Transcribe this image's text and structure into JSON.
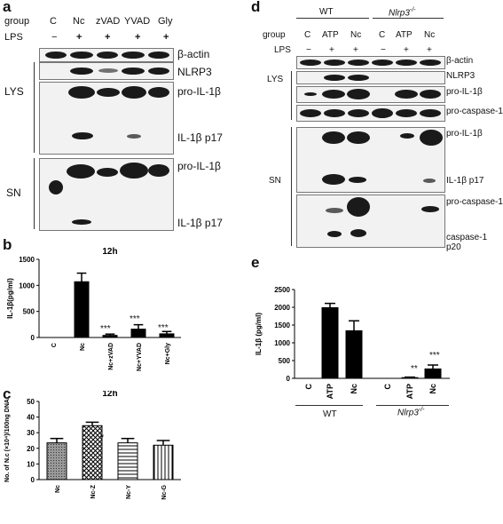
{
  "panel_a": {
    "letter": "a",
    "group_label": "group",
    "lps_label": "LPS",
    "groups": [
      "C",
      "Nc",
      "zVAD",
      "YVAD",
      "Gly"
    ],
    "lps": [
      "−",
      "+",
      "+",
      "+",
      "+"
    ],
    "lys_label": "LYS",
    "sn_label": "SN",
    "bands": [
      "β-actin",
      "NLRP3",
      "pro-IL-1β",
      "IL-1β p17",
      "pro-IL-1β",
      "IL-1β p17"
    ]
  },
  "panel_b": {
    "letter": "b",
    "sig": [
      "***",
      "***",
      "***"
    ]
  },
  "panel_c": {
    "letter": "c",
    "sig": [
      "*"
    ]
  },
  "panel_d": {
    "letter": "d",
    "wt_label": "WT",
    "ko_label": "Nlrp3",
    "ko_sup": "-/-",
    "group_label": "group",
    "lps_label": "LPS",
    "groups": [
      "C",
      "ATP",
      "Nc",
      "C",
      "ATP",
      "Nc"
    ],
    "lps": [
      "−",
      "+",
      "+",
      "−",
      "+",
      "+"
    ],
    "lys_label": "LYS",
    "sn_label": "SN",
    "bands": [
      "β-actin",
      "NLRP3",
      "pro-IL-1β",
      "pro-caspase-1",
      "pro-IL-1β",
      "IL-1β p17",
      "pro-caspase-1",
      "caspase-1 p20"
    ]
  },
  "panel_e": {
    "letter": "e",
    "sig": [
      "**",
      "***"
    ],
    "wt_label": "WT",
    "ko_label": "Nlrp3",
    "ko_sup": "-/-"
  },
  "chart_data": [
    {
      "type": "bar",
      "title": "12h",
      "ylabel": "IL-1β(pg/ml)",
      "categories": [
        "C",
        "Nc",
        "Nc+zVAD",
        "Nc+YVAD",
        "Nc+Gly"
      ],
      "values": [
        0,
        1070,
        40,
        160,
        70
      ],
      "errors": [
        0,
        165,
        25,
        85,
        45
      ],
      "ylim": [
        0,
        1500
      ],
      "yticks": [
        0,
        500,
        1000,
        1500
      ],
      "color": "#000000"
    },
    {
      "type": "bar",
      "title": "12h",
      "ylabel": "No. of N.c (×10⁴)/100ng DNA",
      "categories": [
        "Nc",
        "Nc-Z",
        "Nc-Y",
        "Nc-G"
      ],
      "values": [
        23.5,
        34.5,
        23.5,
        22
      ],
      "errors": [
        2.8,
        2.2,
        2.8,
        3
      ],
      "ylim": [
        0,
        50
      ],
      "yticks": [
        0,
        10,
        20,
        30,
        40,
        50
      ],
      "patterns": [
        "dots-gray",
        "crosshatch",
        "horizontal",
        "vertical"
      ]
    },
    {
      "type": "bar",
      "title": "",
      "ylabel": "IL-1β (pg/ml)",
      "categories": [
        "C",
        "ATP",
        "Nc",
        "C",
        "ATP",
        "Nc"
      ],
      "groups": [
        "WT",
        "Nlrp3-/-"
      ],
      "values": [
        0,
        1990,
        1340,
        0,
        20,
        265
      ],
      "errors": [
        0,
        120,
        280,
        0,
        15,
        110
      ],
      "ylim": [
        0,
        2500
      ],
      "yticks": [
        0,
        500,
        1000,
        1500,
        2000,
        2500
      ],
      "color": "#000000"
    }
  ]
}
